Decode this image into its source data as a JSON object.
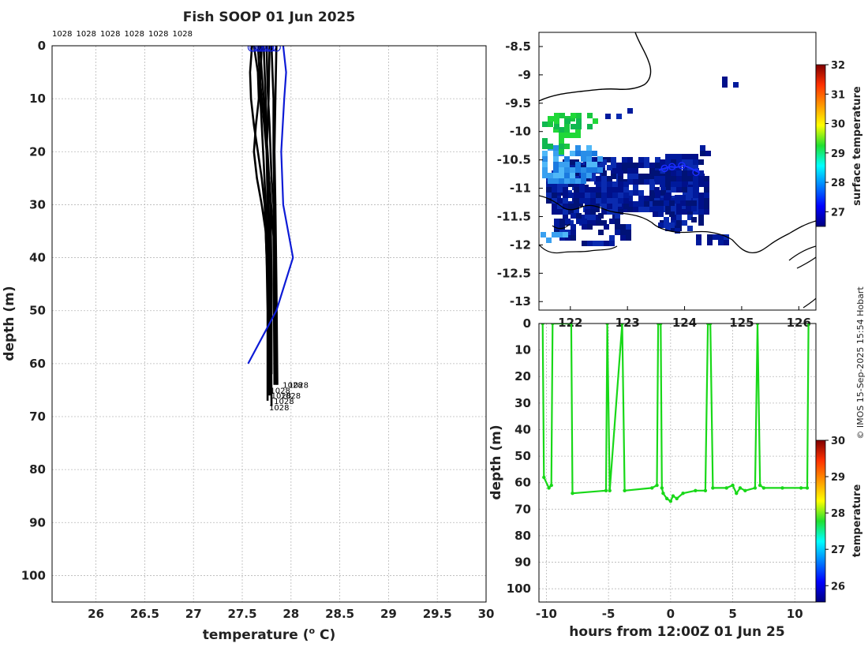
{
  "title": "Fish SOOP 01 Jun 2025",
  "credit": "© IMOS 15-Sep-2025 15:54 Hobart",
  "colors": {
    "profiles": "#000000",
    "mean_profile": "#0d1bd6",
    "track": "#1a2dff",
    "section": "#18d818",
    "coast": "#000000"
  },
  "chart_data": [
    {
      "id": "profiles",
      "type": "line",
      "xlabel": "temperature (° C)",
      "ylabel": "depth (m)",
      "xlim": [
        25.55,
        30
      ],
      "ylim": [
        105,
        0
      ],
      "xticks": [
        26,
        26.5,
        27,
        27.5,
        28,
        28.5,
        29,
        29.5,
        30
      ],
      "yticks": [
        0,
        10,
        20,
        30,
        40,
        50,
        60,
        70,
        80,
        90,
        100
      ],
      "top_labels": [
        "1028",
        "1028",
        "1028",
        "1028",
        "1028",
        "1028"
      ],
      "bottom_label": "1028",
      "bottom_labels": [
        "1028",
        "1028",
        "1028",
        "1028",
        "1028",
        "1028"
      ],
      "grid": true,
      "mean_profile": {
        "name": "mean",
        "x": [
          27.92,
          27.95,
          27.93,
          27.9,
          27.92,
          28.02,
          27.85,
          27.56
        ],
        "y": [
          0,
          5,
          10,
          20,
          30,
          40,
          50,
          60
        ]
      },
      "series": [
        {
          "x": [
            27.62,
            27.66,
            27.67,
            27.64,
            27.62,
            27.65,
            27.7,
            27.74,
            27.76,
            27.77
          ],
          "y": [
            0,
            5,
            10,
            15,
            20,
            25,
            30,
            35,
            45,
            65
          ]
        },
        {
          "x": [
            27.6,
            27.58,
            27.59,
            27.62,
            27.66,
            27.7,
            27.73,
            27.75,
            27.76,
            27.76
          ],
          "y": [
            0,
            5,
            10,
            15,
            20,
            25,
            30,
            40,
            50,
            67
          ]
        },
        {
          "x": [
            27.72,
            27.73,
            27.74,
            27.75,
            27.76,
            27.77,
            27.78,
            27.78
          ],
          "y": [
            0,
            5,
            10,
            20,
            30,
            40,
            50,
            66
          ]
        },
        {
          "x": [
            27.7,
            27.68,
            27.7,
            27.72,
            27.74,
            27.76,
            27.78
          ],
          "y": [
            0,
            8,
            15,
            22,
            30,
            45,
            66
          ]
        },
        {
          "x": [
            27.8,
            27.81,
            27.82,
            27.82,
            27.83,
            27.84,
            27.85
          ],
          "y": [
            0,
            5,
            10,
            20,
            30,
            45,
            64
          ]
        },
        {
          "x": [
            27.85,
            27.84,
            27.83,
            27.84,
            27.85,
            27.86
          ],
          "y": [
            0,
            10,
            20,
            30,
            45,
            64
          ]
        },
        {
          "x": [
            27.75,
            27.76,
            27.78,
            27.8,
            27.82,
            27.84,
            27.84
          ],
          "y": [
            0,
            8,
            15,
            25,
            30,
            40,
            63
          ]
        },
        {
          "x": [
            27.68,
            27.72,
            27.76,
            27.79,
            27.8,
            27.8
          ],
          "y": [
            0,
            10,
            20,
            30,
            45,
            62
          ]
        },
        {
          "x": [
            27.66,
            27.68,
            27.72,
            27.78,
            27.82,
            27.83
          ],
          "y": [
            0,
            6,
            14,
            26,
            36,
            64
          ]
        },
        {
          "x": [
            27.78,
            27.77,
            27.75,
            27.77,
            27.79,
            27.8
          ],
          "y": [
            0,
            10,
            20,
            30,
            45,
            68
          ]
        }
      ]
    },
    {
      "id": "map",
      "type": "heatmap",
      "ylim": [
        -13.15,
        -8.25
      ],
      "xlim": [
        121.45,
        126.3
      ],
      "yticks": [
        -8.5,
        -9,
        -9.5,
        -10,
        -10.5,
        -11,
        -11.5,
        -12,
        -12.5,
        -13
      ],
      "ytick_labels": [
        "-8.5",
        "-9",
        "-9.5",
        "-10",
        "-10.5",
        "-11",
        "-11.5",
        "-12",
        "-12.5",
        "-13"
      ],
      "xticks": [
        122,
        123,
        124,
        125,
        126
      ],
      "xtick_labels": [
        "122",
        "123",
        "124",
        "125",
        "126"
      ],
      "colorbar": {
        "label": "surface temperature",
        "range": [
          26.5,
          32
        ],
        "ticks": [
          27,
          28,
          29,
          30,
          31,
          32
        ]
      },
      "track": {
        "lon": [
          123.55,
          123.75,
          123.85,
          124.0,
          124.15,
          124.25
        ],
        "lat": [
          -10.68,
          -10.62,
          -10.63,
          -10.6,
          -10.67,
          -10.72
        ]
      },
      "track_rings": {
        "lon": [
          123.65,
          123.78,
          123.95,
          124.2
        ],
        "lat": [
          -10.65,
          -10.62,
          -10.6,
          -10.72
        ]
      }
    },
    {
      "id": "section",
      "type": "scatter",
      "xlabel": "hours from 12:00Z 01 Jun 25",
      "ylabel": "depth (m)",
      "xlim": [
        -10.6,
        11.7
      ],
      "ylim": [
        105,
        0
      ],
      "xticks": [
        -10,
        -5,
        0,
        5,
        10
      ],
      "yticks": [
        0,
        10,
        20,
        30,
        40,
        50,
        60,
        70,
        80,
        90,
        100
      ],
      "colorbar": {
        "label": "temperature",
        "range": [
          25.55,
          30
        ],
        "ticks": [
          26,
          27,
          28,
          29,
          30
        ]
      },
      "x": [
        -10.3,
        -10.2,
        -9.8,
        -9.6,
        -9.5,
        -8.0,
        -7.9,
        -5.2,
        -5.1,
        -4.9,
        -3.9,
        -3.7,
        -1.5,
        -1.1,
        -1.0,
        -0.9,
        -0.8,
        -0.7,
        -0.6,
        -0.3,
        0.0,
        0.2,
        0.5,
        1.0,
        2.0,
        2.8,
        3.0,
        3.1,
        3.2,
        3.4,
        4.5,
        5.0,
        5.3,
        5.6,
        6.0,
        6.8,
        7.0,
        7.2,
        7.5,
        9.0,
        10.5,
        11.0,
        11.1
      ],
      "y": [
        0,
        58,
        62,
        61,
        0,
        0,
        64,
        63,
        0,
        63,
        0,
        63,
        62,
        61,
        0,
        0,
        0,
        62,
        64,
        66,
        67,
        65,
        66,
        64,
        63,
        63,
        0,
        0,
        0,
        62,
        62,
        61,
        64,
        62,
        63,
        62,
        0,
        61,
        62,
        62,
        62,
        62,
        0
      ]
    }
  ]
}
